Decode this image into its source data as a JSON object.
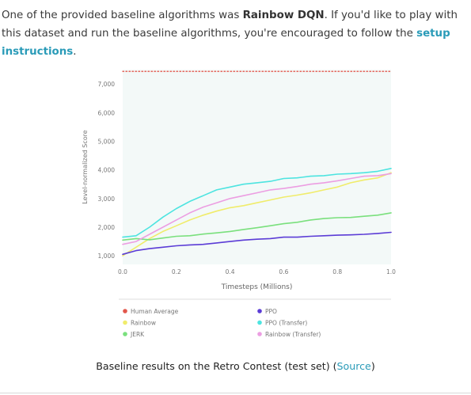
{
  "intro": {
    "part1": "One of the provided baseline algorithms was ",
    "bold": "Rainbow DQN",
    "part2": ". If you'd like to play with this dataset and run the baseline algorithms, you're encouraged to follow the ",
    "link": "setup instructions",
    "part3": "."
  },
  "caption": {
    "text": "Baseline results on the Retro Contest (test set) (",
    "link": "Source",
    "close": ")"
  },
  "chart_data": {
    "type": "line",
    "title": "",
    "xlabel": "Timesteps (Millions)",
    "ylabel": "Level-normalized Score",
    "xlim": [
      0,
      1.0
    ],
    "ylim": [
      700,
      7500
    ],
    "xticks": [
      "0.0",
      "0.2",
      "0.4",
      "0.6",
      "0.8",
      "1.0"
    ],
    "xtick_values": [
      0,
      0.2,
      0.4,
      0.6,
      0.8,
      1.0
    ],
    "yticks": [
      "1,000",
      "2,000",
      "3,000",
      "4,000",
      "5,000",
      "6,000",
      "7,000"
    ],
    "ytick_values": [
      1000,
      2000,
      3000,
      4000,
      5000,
      6000,
      7000
    ],
    "grid": false,
    "background": "#f3f9f8",
    "legend_position": "bottom",
    "series": [
      {
        "name": "Human Average",
        "color": "#e2574c",
        "style": "dotted",
        "x": [
          0,
          1.0
        ],
        "y": [
          7440,
          7440
        ]
      },
      {
        "name": "Rainbow",
        "color": "#f0ec6b",
        "x": [
          0,
          0.05,
          0.1,
          0.15,
          0.2,
          0.25,
          0.3,
          0.35,
          0.4,
          0.45,
          0.5,
          0.55,
          0.6,
          0.65,
          0.7,
          0.75,
          0.8,
          0.85,
          0.9,
          0.95,
          1.0
        ],
        "y": [
          1000,
          1300,
          1600,
          1850,
          2050,
          2250,
          2420,
          2560,
          2680,
          2750,
          2850,
          2950,
          3050,
          3120,
          3200,
          3300,
          3400,
          3550,
          3650,
          3720,
          3900
        ]
      },
      {
        "name": "JERK",
        "color": "#7ae07d",
        "x": [
          0,
          0.05,
          0.1,
          0.15,
          0.2,
          0.25,
          0.3,
          0.35,
          0.4,
          0.45,
          0.5,
          0.55,
          0.6,
          0.65,
          0.7,
          0.75,
          0.8,
          0.85,
          0.9,
          0.95,
          1.0
        ],
        "y": [
          1550,
          1600,
          1560,
          1620,
          1680,
          1700,
          1760,
          1800,
          1850,
          1920,
          1980,
          2050,
          2120,
          2170,
          2250,
          2300,
          2330,
          2340,
          2380,
          2420,
          2500
        ]
      },
      {
        "name": "PPO",
        "color": "#5b3cd6",
        "x": [
          0,
          0.05,
          0.1,
          0.15,
          0.2,
          0.25,
          0.3,
          0.35,
          0.4,
          0.45,
          0.5,
          0.55,
          0.6,
          0.65,
          0.7,
          0.75,
          0.8,
          0.85,
          0.9,
          0.95,
          1.0
        ],
        "y": [
          1050,
          1180,
          1250,
          1300,
          1350,
          1380,
          1400,
          1450,
          1500,
          1550,
          1580,
          1600,
          1650,
          1650,
          1680,
          1700,
          1720,
          1730,
          1750,
          1780,
          1820
        ]
      },
      {
        "name": "PPO (Transfer)",
        "color": "#4de4e0",
        "x": [
          0,
          0.05,
          0.1,
          0.15,
          0.2,
          0.25,
          0.3,
          0.35,
          0.4,
          0.45,
          0.5,
          0.55,
          0.6,
          0.65,
          0.7,
          0.75,
          0.8,
          0.85,
          0.9,
          0.95,
          1.0
        ],
        "y": [
          1650,
          1700,
          2000,
          2350,
          2650,
          2900,
          3100,
          3300,
          3400,
          3500,
          3550,
          3600,
          3700,
          3720,
          3780,
          3800,
          3850,
          3870,
          3900,
          3950,
          4050
        ]
      },
      {
        "name": "Rainbow (Transfer)",
        "color": "#ec9ee2",
        "x": [
          0,
          0.05,
          0.1,
          0.15,
          0.2,
          0.25,
          0.3,
          0.35,
          0.4,
          0.45,
          0.5,
          0.55,
          0.6,
          0.65,
          0.7,
          0.75,
          0.8,
          0.85,
          0.9,
          0.95,
          1.0
        ],
        "y": [
          1400,
          1500,
          1750,
          2000,
          2250,
          2500,
          2700,
          2850,
          3000,
          3100,
          3200,
          3300,
          3350,
          3420,
          3500,
          3550,
          3620,
          3700,
          3780,
          3800,
          3870
        ]
      }
    ],
    "legend_order": [
      "Human Average",
      "PPO",
      "Rainbow",
      "PPO (Transfer)",
      "JERK",
      "Rainbow (Transfer)"
    ]
  }
}
